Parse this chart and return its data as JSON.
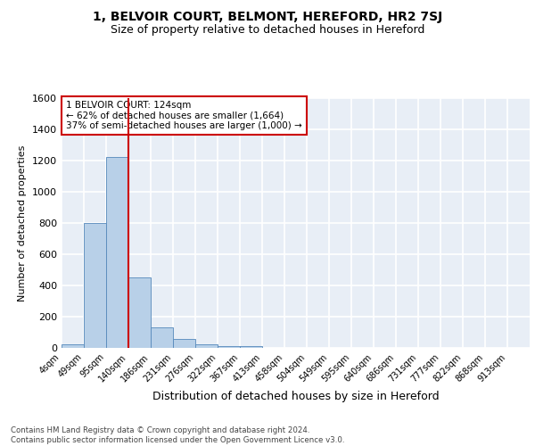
{
  "title": "1, BELVOIR COURT, BELMONT, HEREFORD, HR2 7SJ",
  "subtitle": "Size of property relative to detached houses in Hereford",
  "xlabel": "Distribution of detached houses by size in Hereford",
  "ylabel": "Number of detached properties",
  "bar_values": [
    25,
    800,
    1220,
    450,
    130,
    55,
    22,
    12,
    10,
    0,
    0,
    0,
    0,
    0,
    0,
    0,
    0,
    0,
    0,
    0,
    0
  ],
  "categories": [
    "4sqm",
    "49sqm",
    "95sqm",
    "140sqm",
    "186sqm",
    "231sqm",
    "276sqm",
    "322sqm",
    "367sqm",
    "413sqm",
    "458sqm",
    "504sqm",
    "549sqm",
    "595sqm",
    "640sqm",
    "686sqm",
    "731sqm",
    "777sqm",
    "822sqm",
    "868sqm",
    "913sqm"
  ],
  "bar_color": "#b8d0e8",
  "bar_edge_color": "#5588bb",
  "vline_color": "#cc0000",
  "vline_x": 3.0,
  "annotation_text": "1 BELVOIR COURT: 124sqm\n← 62% of detached houses are smaller (1,664)\n37% of semi-detached houses are larger (1,000) →",
  "annotation_box_color": "#ffffff",
  "annotation_box_edge": "#cc0000",
  "ylim": [
    0,
    1600
  ],
  "yticks": [
    0,
    200,
    400,
    600,
    800,
    1000,
    1200,
    1400,
    1600
  ],
  "footer_text": "Contains HM Land Registry data © Crown copyright and database right 2024.\nContains public sector information licensed under the Open Government Licence v3.0.",
  "background_color": "#e8eef6",
  "grid_color": "#ffffff",
  "title_fontsize": 10,
  "subtitle_fontsize": 9,
  "ylabel_fontsize": 8,
  "xlabel_fontsize": 9
}
